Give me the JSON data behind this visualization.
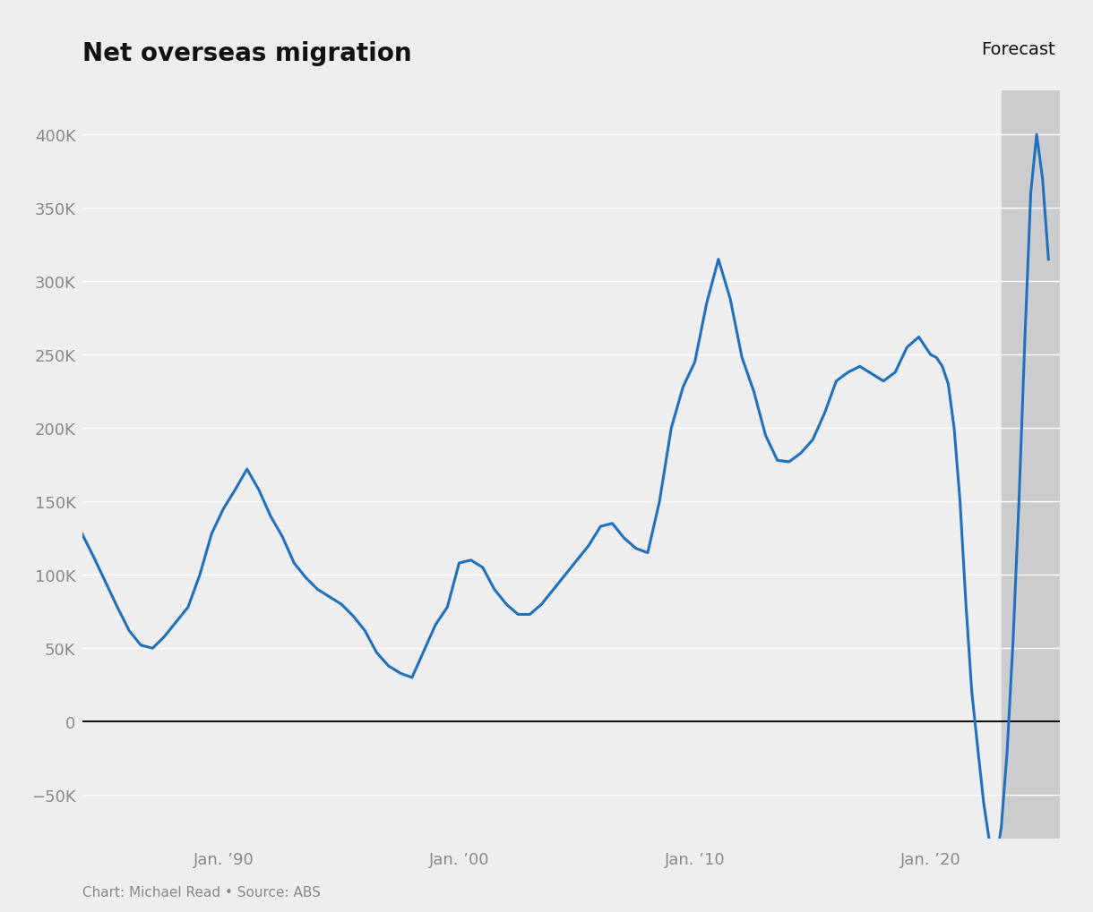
{
  "title": "Net overseas migration",
  "forecast_label": "Forecast",
  "source_text": "Chart: Michael Read • Source: ABS",
  "background_color": "#eeeeee",
  "plot_background_color": "#eeeeee",
  "line_color": "#1a72c4",
  "forecast_shade_color": "#cccccc",
  "forecast_shade_alpha": 1.0,
  "zero_line_color": "#111111",
  "grid_color": "#ffffff",
  "label_color": "#888888",
  "title_color": "#111111",
  "ylim": [
    -80000,
    430000
  ],
  "yticks": [
    -50000,
    0,
    50000,
    100000,
    150000,
    200000,
    250000,
    300000,
    350000,
    400000
  ],
  "xtick_labels": [
    "Jan. ’90",
    "Jan. ’00",
    "Jan. ’10",
    "Jan. ’20"
  ],
  "xtick_years": [
    1990,
    2000,
    2010,
    2020
  ],
  "xlim_left": 1984.0,
  "xlim_right": 2025.5,
  "forecast_start_year": 2023.0,
  "line_width": 2.2,
  "data": [
    [
      1984.0,
      128000
    ],
    [
      1984.5,
      112000
    ],
    [
      1985.0,
      95000
    ],
    [
      1985.5,
      78000
    ],
    [
      1986.0,
      62000
    ],
    [
      1986.5,
      52000
    ],
    [
      1987.0,
      50000
    ],
    [
      1987.5,
      58000
    ],
    [
      1988.0,
      68000
    ],
    [
      1988.5,
      78000
    ],
    [
      1989.0,
      100000
    ],
    [
      1989.5,
      128000
    ],
    [
      1990.0,
      145000
    ],
    [
      1990.5,
      158000
    ],
    [
      1991.0,
      172000
    ],
    [
      1991.5,
      158000
    ],
    [
      1992.0,
      140000
    ],
    [
      1992.5,
      126000
    ],
    [
      1993.0,
      108000
    ],
    [
      1993.5,
      98000
    ],
    [
      1994.0,
      90000
    ],
    [
      1994.5,
      85000
    ],
    [
      1995.0,
      80000
    ],
    [
      1995.5,
      72000
    ],
    [
      1996.0,
      62000
    ],
    [
      1996.5,
      47000
    ],
    [
      1997.0,
      38000
    ],
    [
      1997.5,
      33000
    ],
    [
      1998.0,
      30000
    ],
    [
      1998.5,
      48000
    ],
    [
      1999.0,
      66000
    ],
    [
      1999.5,
      78000
    ],
    [
      2000.0,
      108000
    ],
    [
      2000.5,
      110000
    ],
    [
      2001.0,
      105000
    ],
    [
      2001.5,
      90000
    ],
    [
      2002.0,
      80000
    ],
    [
      2002.5,
      73000
    ],
    [
      2003.0,
      73000
    ],
    [
      2003.5,
      80000
    ],
    [
      2004.0,
      90000
    ],
    [
      2004.5,
      100000
    ],
    [
      2005.0,
      110000
    ],
    [
      2005.5,
      120000
    ],
    [
      2006.0,
      133000
    ],
    [
      2006.5,
      135000
    ],
    [
      2007.0,
      125000
    ],
    [
      2007.5,
      118000
    ],
    [
      2008.0,
      115000
    ],
    [
      2008.5,
      150000
    ],
    [
      2009.0,
      200000
    ],
    [
      2009.5,
      228000
    ],
    [
      2010.0,
      245000
    ],
    [
      2010.5,
      285000
    ],
    [
      2011.0,
      315000
    ],
    [
      2011.5,
      288000
    ],
    [
      2012.0,
      248000
    ],
    [
      2012.5,
      225000
    ],
    [
      2013.0,
      195000
    ],
    [
      2013.5,
      178000
    ],
    [
      2014.0,
      177000
    ],
    [
      2014.5,
      183000
    ],
    [
      2015.0,
      192000
    ],
    [
      2015.5,
      210000
    ],
    [
      2016.0,
      232000
    ],
    [
      2016.5,
      238000
    ],
    [
      2017.0,
      242000
    ],
    [
      2017.5,
      237000
    ],
    [
      2018.0,
      232000
    ],
    [
      2018.5,
      238000
    ],
    [
      2019.0,
      255000
    ],
    [
      2019.5,
      262000
    ],
    [
      2020.0,
      250000
    ],
    [
      2020.25,
      248000
    ],
    [
      2020.5,
      242000
    ],
    [
      2020.75,
      230000
    ],
    [
      2021.0,
      200000
    ],
    [
      2021.25,
      150000
    ],
    [
      2021.5,
      80000
    ],
    [
      2021.75,
      20000
    ],
    [
      2022.0,
      -18000
    ],
    [
      2022.25,
      -55000
    ],
    [
      2022.5,
      -82000
    ],
    [
      2022.75,
      -88000
    ],
    [
      2022.83,
      -90000
    ],
    [
      2023.0,
      -72000
    ],
    [
      2023.25,
      -20000
    ],
    [
      2023.5,
      55000
    ],
    [
      2023.75,
      150000
    ],
    [
      2024.0,
      260000
    ],
    [
      2024.25,
      360000
    ],
    [
      2024.5,
      400000
    ],
    [
      2024.75,
      370000
    ],
    [
      2025.0,
      315000
    ]
  ]
}
